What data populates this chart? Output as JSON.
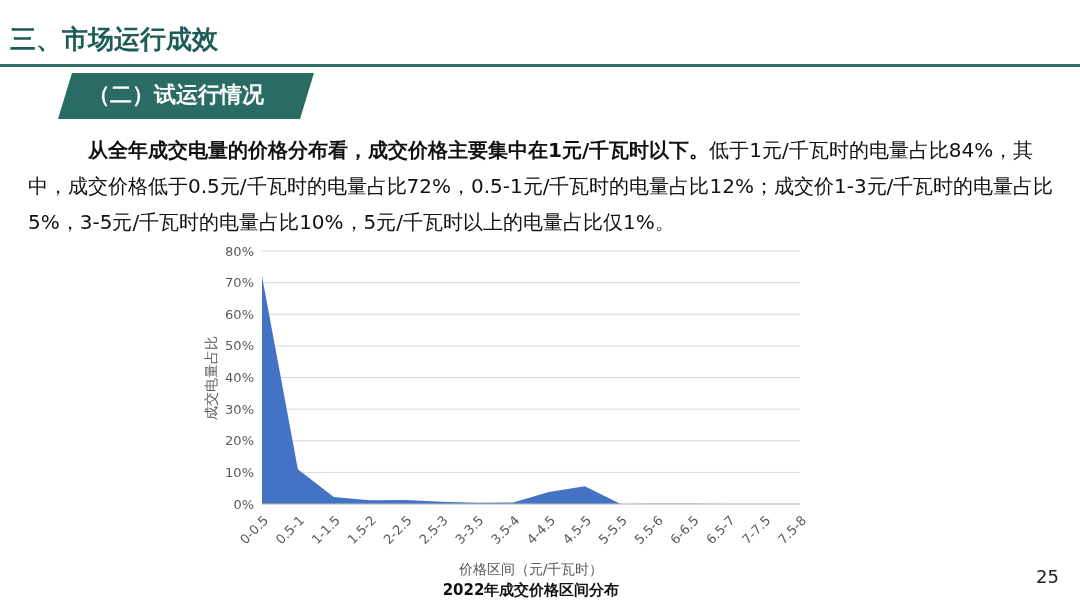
{
  "chart_data": {
    "type": "area",
    "title": "2022年成交价格区间分布",
    "xlabel": "价格区间（元/千瓦时）",
    "ylabel": "成交电量占比",
    "categories": [
      "0-0.5",
      "0.5-1",
      "1-1.5",
      "1.5-2",
      "2-2.5",
      "2.5-3",
      "3-3.5",
      "3.5-4",
      "4-4.5",
      "4.5-5",
      "5-5.5",
      "5.5-6",
      "6-6.5",
      "6.5-7",
      "7-7.5",
      "7.5-8"
    ],
    "series": [
      {
        "color": "#4472c4",
        "values": [
          72,
          11,
          2.2,
          1.2,
          1.3,
          0.7,
          0.4,
          0.5,
          3.8,
          5.6,
          0,
          0.1,
          0.1,
          0,
          0,
          0
        ]
      }
    ],
    "ylim": [
      0,
      80
    ],
    "yticks": [
      {
        "value": 0,
        "label": "0%"
      },
      {
        "value": 10,
        "label": "10%"
      },
      {
        "value": 20,
        "label": "20%"
      },
      {
        "value": 30,
        "label": "30%"
      },
      {
        "value": 40,
        "label": "40%"
      },
      {
        "value": 50,
        "label": "50%"
      },
      {
        "value": 60,
        "label": "60%"
      },
      {
        "value": 70,
        "label": "70%"
      },
      {
        "value": 80,
        "label": "80%"
      }
    ],
    "grid": "y",
    "annotations": [
      "三、市场运行成效",
      "（二）试运行情况",
      "从全年成交电量的价格分布看，成交价格主要集中在1元/千瓦时以下。",
      "低于1元/千瓦时的电量占比84%，其中，成交价格低于0.5元/千瓦时的电量占比72%，0.5-1元/千瓦时的电量占比12%；成交价1-3元/千瓦时的电量占比5%，3-5元/千瓦时的电量占比10%，5元/千瓦时以上的电量占比仅1%。",
      "25"
    ]
  }
}
